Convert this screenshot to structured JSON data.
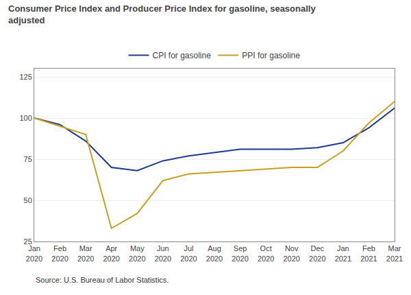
{
  "chart_data": {
    "type": "line",
    "title": "Consumer Price Index and Producer Price Index for gasoline, seasonally\nadjusted",
    "annotations": [
      "Source: U.S. Bureau of Labor Statistics."
    ],
    "categories": [
      "Jan\n2020",
      "Feb\n2020",
      "Mar\n2020",
      "Apr\n2020",
      "May\n2020",
      "Jun\n2020",
      "Jul\n2020",
      "Aug\n2020",
      "Sep\n2020",
      "Oct\n2020",
      "Nov\n2020",
      "Dec\n2020",
      "Jan\n2021",
      "Feb\n2021",
      "Mar\n2021"
    ],
    "series": [
      {
        "name": "CPI for gasoline",
        "color": "#1f3a8f",
        "values": [
          100,
          96,
          86,
          70,
          68,
          74,
          77,
          79,
          81,
          81,
          81,
          82,
          85,
          94,
          106
        ]
      },
      {
        "name": "PPI for gasoline",
        "color": "#c8a020",
        "values": [
          100,
          95,
          90,
          33,
          42,
          62,
          66,
          67,
          68,
          69,
          70,
          70,
          80,
          97,
          110
        ]
      }
    ],
    "ylim": [
      25,
      130
    ],
    "yticks": [
      25,
      50,
      75,
      100,
      125
    ],
    "grid": true,
    "legend": "top"
  }
}
